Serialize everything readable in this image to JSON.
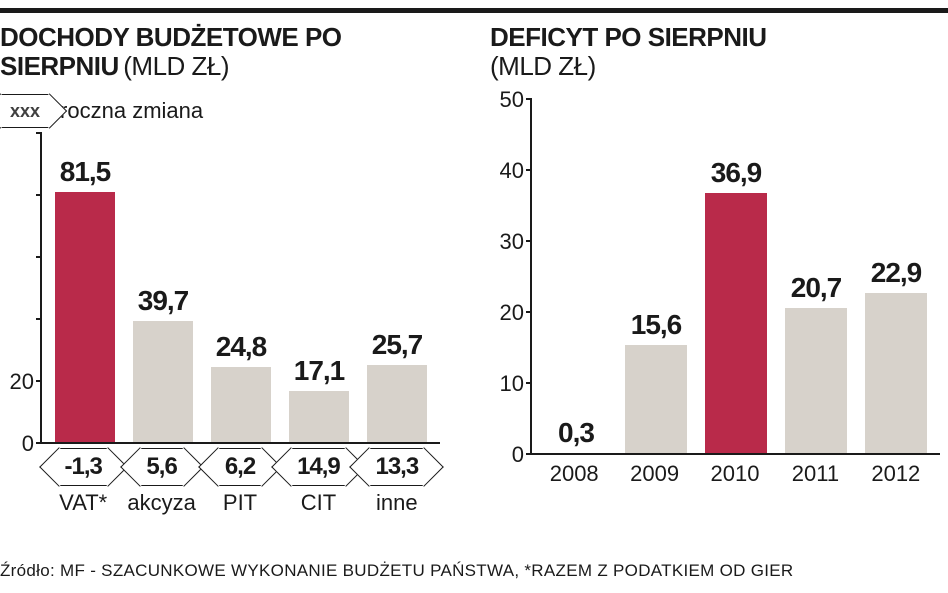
{
  "colors": {
    "highlight_bar": "#b92a4a",
    "normal_bar": "#d7d2cb",
    "axis": "#1a1a1a",
    "text": "#1a1a1a",
    "background": "#ffffff"
  },
  "left_chart": {
    "title_bold": "DOCHODY BUDŻETOWE PO SIERPNIU",
    "title_light": "(MLD ZŁ)",
    "legend_symbol_text": "xxx",
    "legend_label": "roczna zmiana",
    "type": "bar",
    "ylim": [
      0,
      100
    ],
    "ytick_step": 20,
    "yticks": [
      0,
      20,
      40,
      60,
      80,
      100
    ],
    "yticks_visible": [
      "0",
      "20"
    ],
    "categories": [
      "VAT*",
      "akcyza",
      "PIT",
      "CIT",
      "inne"
    ],
    "values": [
      81.5,
      39.7,
      24.8,
      17.1,
      25.7
    ],
    "value_labels": [
      "81,5",
      "39,7",
      "24,8",
      "17,1",
      "25,7"
    ],
    "changes": [
      "-1,3",
      "5,6",
      "6,2",
      "14,9",
      "13,3"
    ],
    "highlight_index": 0,
    "bar_width": 0.78,
    "value_fontsize": 28,
    "value_fontweight": 900,
    "label_fontsize": 22
  },
  "right_chart": {
    "title_bold": "DEFICYT PO SIERPNIU",
    "title_light": "(MLD ZŁ)",
    "type": "bar",
    "ylim": [
      0,
      50
    ],
    "ytick_step": 10,
    "yticks": [
      0,
      10,
      20,
      30,
      40,
      50
    ],
    "categories": [
      "2008",
      "2009",
      "2010",
      "2011",
      "2012"
    ],
    "values": [
      0.3,
      15.6,
      36.9,
      20.7,
      22.9
    ],
    "value_labels": [
      "0,3",
      "15,6",
      "36,9",
      "20,7",
      "22,9"
    ],
    "highlight_index": 2,
    "bar_width": 0.78,
    "value_fontsize": 28,
    "value_fontweight": 900,
    "label_fontsize": 22
  },
  "source_text": "Źródło: MF - SZACUNKOWE WYKONANIE BUDŻETU PAŃSTWA, *RAZEM Z PODATKIEM OD GIER"
}
